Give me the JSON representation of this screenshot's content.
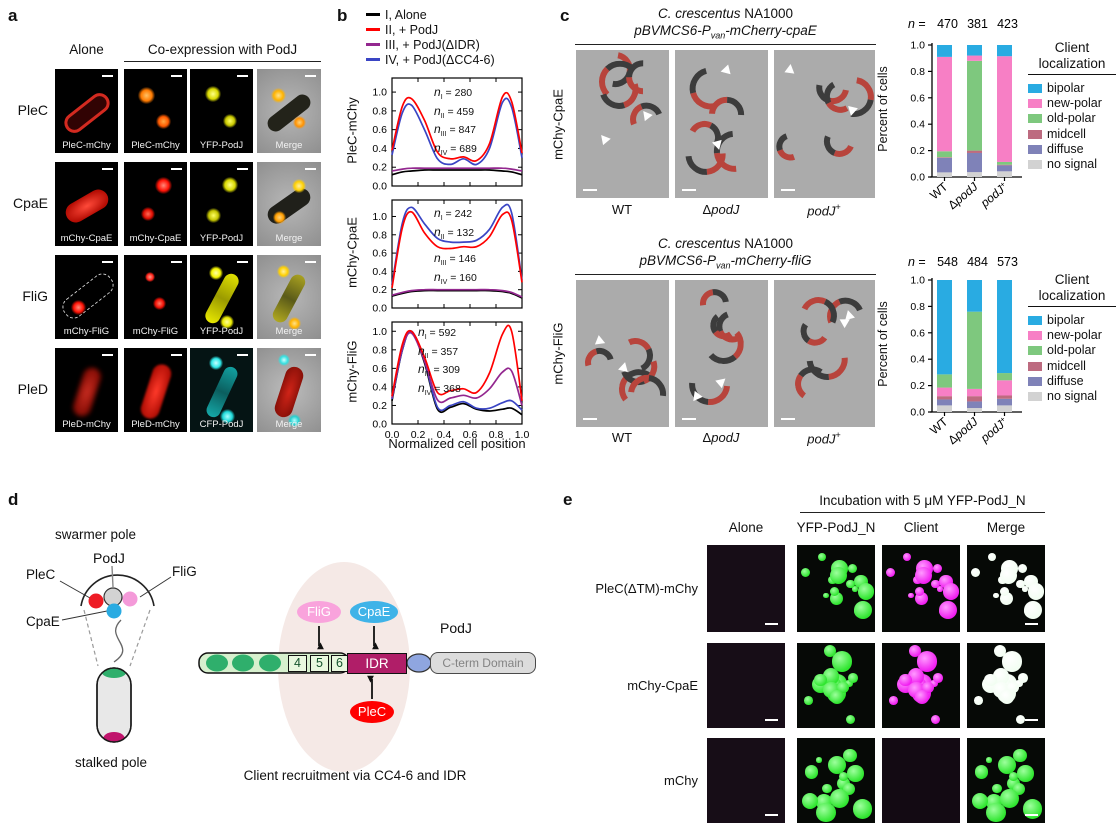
{
  "panel_a": {
    "letter": "a",
    "col_headers": {
      "alone": "Alone",
      "coexpression": "Co-expression with PodJ"
    },
    "rows": [
      {
        "label": "PleC",
        "images": [
          {
            "label": "PleC-mChy",
            "look": "hollow-red-rod"
          },
          {
            "label": "PleC-mChy",
            "look": "two-orange-foci"
          },
          {
            "label": "YFP-PodJ",
            "look": "two-yellow-foci"
          },
          {
            "label": "Merge",
            "look": "merge-orange-poles"
          }
        ]
      },
      {
        "label": "CpaE",
        "images": [
          {
            "label": "mChy-CpaE",
            "look": "red-rod"
          },
          {
            "label": "mChy-CpaE",
            "look": "two-red-foci"
          },
          {
            "label": "YFP-PodJ",
            "look": "two-yellow-foci2"
          },
          {
            "label": "Merge",
            "look": "merge-yellow-poles"
          }
        ]
      },
      {
        "label": "FliG",
        "images": [
          {
            "label": "mChy-FliG",
            "look": "red-focus-dashed"
          },
          {
            "label": "mChy-FliG",
            "look": "two-red-foci-small"
          },
          {
            "label": "YFP-PodJ",
            "look": "yellow-rod-poles"
          },
          {
            "label": "Merge",
            "look": "merge-yellow-rod"
          }
        ]
      },
      {
        "label": "PleD",
        "images": [
          {
            "label": "PleD-mChy",
            "look": "soft-red-rod"
          },
          {
            "label": "PleD-mChy",
            "look": "red-rod2"
          },
          {
            "label": "CFP-PodJ",
            "look": "cyan-rod-poles"
          },
          {
            "label": "Merge",
            "look": "merge-red-rod-cyan-poles"
          }
        ]
      }
    ]
  },
  "panel_b": {
    "letter": "b",
    "legend": [
      {
        "label": "I, Alone",
        "color": "#000000"
      },
      {
        "label": "II, + PodJ",
        "color": "#ff0000"
      },
      {
        "label": "III, + PodJ(ΔIDR)",
        "color": "#93278f"
      },
      {
        "label": "IV, + PodJ(ΔCC4-6)",
        "color": "#3a45c4"
      }
    ],
    "xlabel": "Normalized cell position"
  },
  "panel_c": {
    "letter": "c",
    "groups": [
      {
        "title_italic": "C. crescentus",
        "title_normal": " NA1000",
        "plasmid_pre": "pBVMCS6-P",
        "plasmid_sub": "van",
        "plasmid_post": "-mCherry-cpaE",
        "row_label": "mChy-CpaE",
        "conditions": [
          [
            {
              "t": "WT"
            }
          ],
          [
            {
              "t": "Δ"
            },
            {
              "t": "podJ",
              "i": true
            }
          ],
          [
            {
              "t": "podJ",
              "i": true
            },
            {
              "t": "+",
              "sup": true
            }
          ]
        ]
      },
      {
        "title_italic": "C. crescentus",
        "title_normal": " NA1000",
        "plasmid_pre": "pBVMCS6-P",
        "plasmid_sub": "van",
        "plasmid_post": "-mCherry-fliG",
        "row_label": "mChy-FliG",
        "conditions": [
          [
            {
              "t": "WT"
            }
          ],
          [
            {
              "t": "Δ"
            },
            {
              "t": "podJ",
              "i": true
            }
          ],
          [
            {
              "t": "podJ",
              "i": true
            },
            {
              "t": "+",
              "sup": true
            }
          ]
        ]
      }
    ],
    "legend": {
      "title1": "Client",
      "title2": "localization",
      "entries": [
        {
          "label": "bipolar",
          "color": "#29abe2"
        },
        {
          "label": "new-polar",
          "color": "#f77fc5"
        },
        {
          "label": "old-polar",
          "color": "#7ec87e"
        },
        {
          "label": "midcell",
          "color": "#bd6b80"
        },
        {
          "label": "diffuse",
          "color": "#7f82b8"
        },
        {
          "label": "no signal",
          "color": "#d2d2d2"
        }
      ]
    }
  },
  "panel_d": {
    "letter": "d",
    "left": {
      "swarmer": "swarmer pole",
      "stalked": "stalked pole",
      "podj": "PodJ",
      "plec": "PleC",
      "flig": "FliG",
      "cpae": "CpaE"
    },
    "right": {
      "flig": "FliG",
      "cpae": "CpaE",
      "plec": "PleC",
      "podj": "PodJ",
      "boxes": [
        "4",
        "5",
        "6"
      ],
      "idr": "IDR",
      "cterm": "C-term Domain",
      "caption": "Client recruitment via CC4-6 and IDR"
    }
  },
  "panel_e": {
    "letter": "e",
    "title": "Incubation with 5 μM YFP-PodJ_N",
    "col_headers": [
      "Alone",
      "YFP-PodJ_N",
      "Client",
      "Merge"
    ],
    "rows": [
      {
        "label": "PleC(ΔTM)-mChy",
        "cols": [
          "dark",
          "green",
          "magenta",
          "white"
        ]
      },
      {
        "label": "mChy-CpaE",
        "cols": [
          "dark",
          "green",
          "magenta",
          "white"
        ]
      },
      {
        "label": "mChy",
        "cols": [
          "dark",
          "green",
          "dark2",
          "green"
        ]
      }
    ]
  },
  "chart_data": [
    {
      "type": "line",
      "ylabel": "PleC-mChy",
      "x": [
        0,
        0.08,
        0.15,
        0.25,
        0.35,
        0.45,
        0.55,
        0.65,
        0.75,
        0.85,
        0.92,
        1.0
      ],
      "yticks": [
        0,
        0.2,
        0.4,
        0.6,
        0.8,
        1.0
      ],
      "xticks": [
        0,
        0.2,
        0.4,
        0.6,
        0.8,
        1.0
      ],
      "ylim": [
        0,
        1.15
      ],
      "series": [
        {
          "name": "I, Alone",
          "color": "#000000",
          "values": [
            0.12,
            0.15,
            0.16,
            0.17,
            0.17,
            0.17,
            0.17,
            0.17,
            0.17,
            0.16,
            0.15,
            0.12
          ]
        },
        {
          "name": "III, + PodJ(ΔIDR)",
          "color": "#93278f",
          "values": [
            0.16,
            0.18,
            0.19,
            0.19,
            0.19,
            0.19,
            0.19,
            0.19,
            0.19,
            0.19,
            0.18,
            0.16
          ]
        },
        {
          "name": "IV, + PodJ(ΔCC4-6)",
          "color": "#3a45c4",
          "values": [
            0.33,
            0.78,
            0.86,
            0.6,
            0.29,
            0.23,
            0.29,
            0.23,
            0.4,
            0.89,
            0.84,
            0.3
          ]
        },
        {
          "name": "II, + PodJ",
          "color": "#ff0000",
          "values": [
            0.38,
            0.85,
            0.93,
            0.7,
            0.36,
            0.29,
            0.31,
            0.27,
            0.45,
            0.95,
            0.9,
            0.35
          ]
        }
      ],
      "n_annotations": [
        {
          "sub": "I",
          "value": "280"
        },
        {
          "sub": "II",
          "value": "459"
        },
        {
          "sub": "III",
          "value": "847"
        },
        {
          "sub": "IV",
          "value": "689"
        }
      ]
    },
    {
      "type": "line",
      "ylabel": "mChy-CpaE",
      "x": [
        0,
        0.08,
        0.15,
        0.25,
        0.35,
        0.45,
        0.55,
        0.65,
        0.75,
        0.85,
        0.92,
        1.0
      ],
      "yticks": [
        0,
        0.2,
        0.4,
        0.6,
        0.8,
        1.0
      ],
      "xticks": [
        0,
        0.2,
        0.4,
        0.6,
        0.8,
        1.0
      ],
      "ylim": [
        0,
        1.18
      ],
      "series": [
        {
          "name": "I, Alone",
          "color": "#000000",
          "values": [
            0.13,
            0.16,
            0.18,
            0.19,
            0.19,
            0.19,
            0.19,
            0.19,
            0.19,
            0.18,
            0.16,
            0.11
          ]
        },
        {
          "name": "III, + PodJ(ΔIDR)",
          "color": "#93278f",
          "values": [
            0.14,
            0.17,
            0.19,
            0.2,
            0.2,
            0.2,
            0.2,
            0.2,
            0.2,
            0.19,
            0.17,
            0.12
          ]
        },
        {
          "name": "IV, + PodJ(ΔCC4-6)",
          "color": "#3a45c4",
          "values": [
            0.25,
            0.93,
            1.1,
            0.92,
            0.76,
            0.72,
            0.72,
            0.74,
            0.86,
            1.1,
            1.04,
            0.3
          ]
        },
        {
          "name": "II, + PodJ",
          "color": "#ff0000",
          "values": [
            0.22,
            0.88,
            1.05,
            0.82,
            0.67,
            0.65,
            0.67,
            0.67,
            0.78,
            1.02,
            0.96,
            0.28
          ]
        }
      ],
      "n_annotations": [
        {
          "sub": "I",
          "value": "242"
        },
        {
          "sub": "II",
          "value": "132"
        },
        {
          "sub": "III",
          "value": "146"
        },
        {
          "sub": "IV",
          "value": "160"
        }
      ]
    },
    {
      "type": "line",
      "ylabel": "mChy-FliG",
      "x": [
        0,
        0.08,
        0.15,
        0.25,
        0.35,
        0.45,
        0.55,
        0.65,
        0.75,
        0.85,
        0.92,
        1.0
      ],
      "yticks": [
        0,
        0.2,
        0.4,
        0.6,
        0.8,
        1.0
      ],
      "xticks": [
        0,
        0.2,
        0.4,
        0.6,
        0.8,
        1.0
      ],
      "ylim": [
        0,
        1.1
      ],
      "series": [
        {
          "name": "I, Alone",
          "color": "#000000",
          "values": [
            0.25,
            0.8,
            1.0,
            0.66,
            0.16,
            0.18,
            0.22,
            0.16,
            0.14,
            0.16,
            0.17,
            0.1
          ]
        },
        {
          "name": "IV, + PodJ(ΔCC4-6)",
          "color": "#3a45c4",
          "values": [
            0.27,
            0.8,
            1.0,
            0.68,
            0.18,
            0.2,
            0.24,
            0.17,
            0.17,
            0.23,
            0.25,
            0.15
          ]
        },
        {
          "name": "III, + PodJ(ΔIDR)",
          "color": "#93278f",
          "values": [
            0.28,
            0.82,
            0.98,
            0.68,
            0.26,
            0.28,
            0.31,
            0.28,
            0.38,
            0.56,
            0.57,
            0.2
          ]
        },
        {
          "name": "II, + PodJ",
          "color": "#ff0000",
          "values": [
            0.3,
            0.86,
            1.0,
            0.72,
            0.34,
            0.36,
            0.38,
            0.34,
            0.55,
            0.97,
            1.0,
            0.25
          ]
        }
      ],
      "n_annotations": [
        {
          "sub": "I",
          "value": "592"
        },
        {
          "sub": "II",
          "value": "357"
        },
        {
          "sub": "III",
          "value": "309"
        },
        {
          "sub": "IV",
          "value": "368"
        }
      ]
    },
    {
      "type": "stacked_bar",
      "id": "cpae-localization",
      "ylabel": "Percent of cells",
      "n_prefix": "n =",
      "n_values": [
        "470",
        "381",
        "423"
      ],
      "yticks": [
        0,
        0.2,
        0.4,
        0.6,
        0.8,
        1.0
      ],
      "ylim": [
        0,
        1.0
      ],
      "categories": [
        [
          {
            "t": "WT"
          }
        ],
        [
          {
            "t": "Δ"
          },
          {
            "t": "podJ",
            "i": true
          }
        ],
        [
          {
            "t": "podJ",
            "i": true
          },
          {
            "t": "+",
            "sup": true
          }
        ]
      ],
      "series": [
        {
          "name": "no signal",
          "color": "#d2d2d2",
          "values": [
            0.035,
            0.037,
            0.043
          ]
        },
        {
          "name": "diffuse",
          "color": "#7f82b8",
          "values": [
            0.11,
            0.145,
            0.045
          ]
        },
        {
          "name": "midcell",
          "color": "#bd6b80",
          "values": [
            0.005,
            0.018,
            0.005
          ]
        },
        {
          "name": "old-polar",
          "color": "#7ec87e",
          "values": [
            0.045,
            0.68,
            0.021
          ]
        },
        {
          "name": "new-polar",
          "color": "#f77fc5",
          "values": [
            0.715,
            0.04,
            0.801
          ]
        },
        {
          "name": "bipolar",
          "color": "#29abe2",
          "values": [
            0.09,
            0.08,
            0.085
          ]
        }
      ]
    },
    {
      "type": "stacked_bar",
      "id": "flig-localization",
      "ylabel": "Percent of cells",
      "n_prefix": "n =",
      "n_values": [
        "548",
        "484",
        "573"
      ],
      "yticks": [
        0,
        0.2,
        0.4,
        0.6,
        0.8,
        1.0
      ],
      "ylim": [
        0,
        1.0
      ],
      "categories": [
        [
          {
            "t": "WT"
          }
        ],
        [
          {
            "t": "Δ"
          },
          {
            "t": "podJ",
            "i": true
          }
        ],
        [
          {
            "t": "podJ",
            "i": true
          },
          {
            "t": "+",
            "sup": true
          }
        ]
      ],
      "series": [
        {
          "name": "no signal",
          "color": "#d2d2d2",
          "values": [
            0.05,
            0.03,
            0.05
          ]
        },
        {
          "name": "diffuse",
          "color": "#7f82b8",
          "values": [
            0.045,
            0.05,
            0.05
          ]
        },
        {
          "name": "midcell",
          "color": "#bd6b80",
          "values": [
            0.025,
            0.04,
            0.025
          ]
        },
        {
          "name": "new-polar",
          "color": "#f77fc5",
          "values": [
            0.065,
            0.055,
            0.115
          ]
        },
        {
          "name": "old-polar",
          "color": "#7ec87e",
          "values": [
            0.1,
            0.585,
            0.055
          ]
        },
        {
          "name": "bipolar",
          "color": "#29abe2",
          "values": [
            0.715,
            0.24,
            0.705
          ]
        }
      ]
    }
  ]
}
